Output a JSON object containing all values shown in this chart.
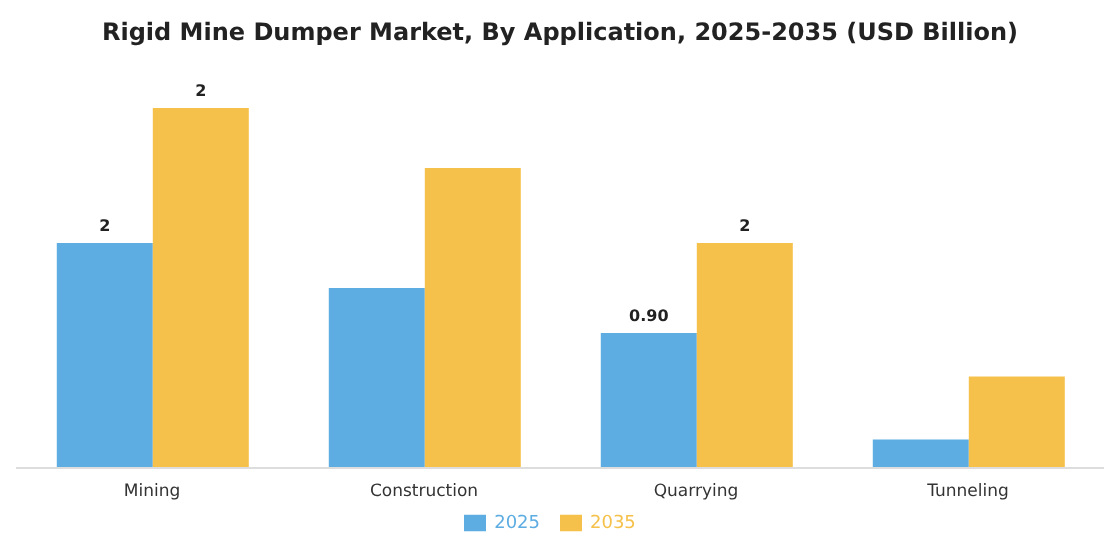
{
  "chart_data": {
    "type": "bar",
    "title": "Rigid Mine Dumper Market, By Application, 2025-2035 (USD Billion)",
    "categories": [
      "Mining",
      "Construction",
      "Quarrying",
      "Tunneling"
    ],
    "series": [
      {
        "name": "2025",
        "color": "#5dade2",
        "values": [
          1.5,
          1.2,
          0.9,
          0.19
        ],
        "value_labels": [
          "2",
          null,
          "0.90",
          null
        ]
      },
      {
        "name": "2035",
        "color": "#f5c14b",
        "values": [
          2.4,
          2.0,
          1.5,
          0.61
        ],
        "value_labels": [
          "2",
          null,
          "2",
          null
        ]
      }
    ],
    "legend": "bottom",
    "grid": false
  }
}
